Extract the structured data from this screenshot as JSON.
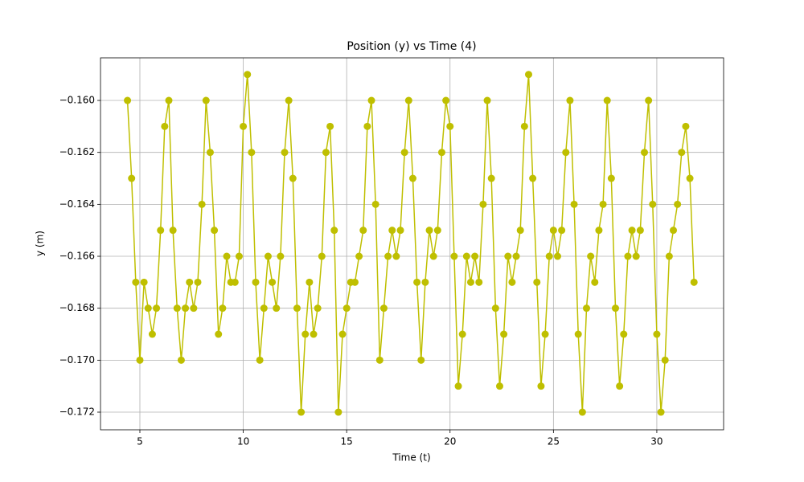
{
  "chart_data": {
    "type": "line",
    "title": "Position (y) vs Time (4)",
    "x_label": "Time (t)",
    "y_label": "y (m)",
    "color": "#bfbf00",
    "grid": true,
    "marker": "circle",
    "x": [
      4.4,
      4.6,
      4.8,
      5.0,
      5.2,
      5.4,
      5.6,
      5.8,
      6.0,
      6.2,
      6.4,
      6.6,
      6.8,
      7.0,
      7.2,
      7.4,
      7.6,
      7.8,
      8.0,
      8.2,
      8.4,
      8.6,
      8.8,
      9.0,
      9.2,
      9.4,
      9.6,
      9.8,
      10.0,
      10.2,
      10.4,
      10.6,
      10.8,
      11.0,
      11.2,
      11.4,
      11.6,
      11.8,
      12.0,
      12.2,
      12.4,
      12.6,
      12.8,
      13.0,
      13.2,
      13.4,
      13.6,
      13.8,
      14.0,
      14.2,
      14.4,
      14.6,
      14.8,
      15.0,
      15.2,
      15.4,
      15.6,
      15.8,
      16.0,
      16.2,
      16.4,
      16.6,
      16.8,
      17.0,
      17.2,
      17.4,
      17.6,
      17.8,
      18.0,
      18.2,
      18.4,
      18.6,
      18.8,
      19.0,
      19.2,
      19.4,
      19.6,
      19.8,
      20.0,
      20.2,
      20.4,
      20.6,
      20.8,
      21.0,
      21.2,
      21.4,
      21.6,
      21.8,
      22.0,
      22.2,
      22.4,
      22.6,
      22.8,
      23.0,
      23.2,
      23.4,
      23.6,
      23.8,
      24.0,
      24.2,
      24.4,
      24.6,
      24.8,
      25.0,
      25.2,
      25.4,
      25.6,
      25.8,
      26.0,
      26.2,
      26.4,
      26.6,
      26.8,
      27.0,
      27.2,
      27.4,
      27.6,
      27.8,
      28.0,
      28.2,
      28.4,
      28.6,
      28.8,
      29.0,
      29.2,
      29.4,
      29.6,
      29.8,
      30.0,
      30.2,
      30.4,
      30.6,
      30.8,
      31.0,
      31.2,
      31.4,
      31.6,
      31.8
    ],
    "values": [
      -0.16,
      -0.163,
      -0.167,
      -0.17,
      -0.167,
      -0.168,
      -0.169,
      -0.168,
      -0.165,
      -0.161,
      -0.16,
      -0.165,
      -0.168,
      -0.17,
      -0.168,
      -0.167,
      -0.168,
      -0.167,
      -0.164,
      -0.16,
      -0.162,
      -0.165,
      -0.169,
      -0.168,
      -0.166,
      -0.167,
      -0.167,
      -0.166,
      -0.161,
      -0.159,
      -0.162,
      -0.167,
      -0.17,
      -0.168,
      -0.166,
      -0.167,
      -0.168,
      -0.166,
      -0.162,
      -0.16,
      -0.163,
      -0.168,
      -0.172,
      -0.169,
      -0.167,
      -0.169,
      -0.168,
      -0.166,
      -0.162,
      -0.161,
      -0.165,
      -0.172,
      -0.169,
      -0.168,
      -0.167,
      -0.167,
      -0.166,
      -0.165,
      -0.161,
      -0.16,
      -0.164,
      -0.17,
      -0.168,
      -0.166,
      -0.165,
      -0.166,
      -0.165,
      -0.162,
      -0.16,
      -0.163,
      -0.167,
      -0.17,
      -0.167,
      -0.165,
      -0.166,
      -0.165,
      -0.162,
      -0.16,
      -0.161,
      -0.166,
      -0.171,
      -0.169,
      -0.166,
      -0.167,
      -0.166,
      -0.167,
      -0.164,
      -0.16,
      -0.163,
      -0.168,
      -0.171,
      -0.169,
      -0.166,
      -0.167,
      -0.166,
      -0.165,
      -0.161,
      -0.159,
      -0.163,
      -0.167,
      -0.171,
      -0.169,
      -0.166,
      -0.165,
      -0.166,
      -0.165,
      -0.162,
      -0.16,
      -0.164,
      -0.169,
      -0.172,
      -0.168,
      -0.166,
      -0.167,
      -0.165,
      -0.164,
      -0.16,
      -0.163,
      -0.168,
      -0.171,
      -0.169,
      -0.166,
      -0.165,
      -0.166,
      -0.165,
      -0.162,
      -0.16,
      -0.164,
      -0.169,
      -0.172,
      -0.17,
      -0.166,
      -0.165,
      -0.164,
      -0.162,
      -0.161,
      -0.163,
      -0.167
    ],
    "xlim": [
      3.095,
      33.23
    ],
    "ylim": [
      -0.17268,
      -0.15836
    ],
    "xticks": [
      5,
      10,
      15,
      20,
      25,
      30
    ],
    "yticks": [
      {
        "value": -0.172,
        "label": "−0.172"
      },
      {
        "value": -0.17,
        "label": "−0.170"
      },
      {
        "value": -0.168,
        "label": "−0.168"
      },
      {
        "value": -0.166,
        "label": "−0.166"
      },
      {
        "value": -0.164,
        "label": "−0.164"
      },
      {
        "value": -0.162,
        "label": "−0.162"
      },
      {
        "value": -0.16,
        "label": "−0.160"
      }
    ]
  }
}
